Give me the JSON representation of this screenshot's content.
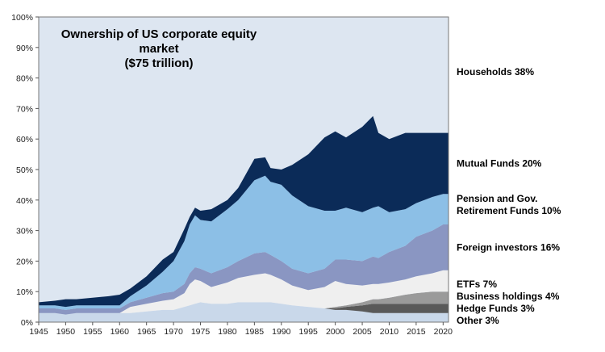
{
  "chart_data": {
    "type": "area",
    "stacked": true,
    "title": [
      "Ownership of US corporate equity",
      "market",
      "($75 trillion)"
    ],
    "xlim": [
      1945,
      2021
    ],
    "ylim": [
      0,
      100
    ],
    "x": [
      1945,
      1948,
      1950,
      1952,
      1955,
      1958,
      1960,
      1962,
      1965,
      1968,
      1970,
      1972,
      1973,
      1974,
      1975,
      1977,
      1980,
      1982,
      1985,
      1987,
      1988,
      1990,
      1992,
      1995,
      1998,
      2000,
      2002,
      2005,
      2007,
      2008,
      2010,
      2013,
      2015,
      2018,
      2020,
      2021
    ],
    "xticks": [
      "1945",
      "1950",
      "1955",
      "1960",
      "1965",
      "1970",
      "1975",
      "1980",
      "1985",
      "1990",
      "1995",
      "2000",
      "2005",
      "2010",
      "2015",
      "2020"
    ],
    "yticks": [
      "0%",
      "10%",
      "20%",
      "30%",
      "40%",
      "50%",
      "60%",
      "70%",
      "80%",
      "90%",
      "100%"
    ],
    "series": [
      {
        "name": "Other 3%",
        "color": "#c9d8ea",
        "values": [
          3,
          3,
          2.5,
          3,
          3,
          3,
          3,
          3,
          3.5,
          4,
          4,
          5,
          5.5,
          6,
          6.5,
          6,
          6,
          6.5,
          6.5,
          6.5,
          6.5,
          6,
          5.5,
          5,
          4.5,
          4,
          4,
          3.5,
          3,
          3,
          3,
          3,
          3,
          3,
          3,
          3
        ]
      },
      {
        "name": "Hedge Funds 3%",
        "color": "#595959",
        "values": [
          0,
          0,
          0,
          0,
          0,
          0,
          0,
          0,
          0,
          0,
          0,
          0,
          0,
          0,
          0,
          0,
          0,
          0,
          0,
          0,
          0,
          0,
          0,
          0,
          0,
          0.5,
          1,
          2,
          3,
          3,
          3,
          3,
          3,
          3,
          3,
          3
        ]
      },
      {
        "name": "Business holdings 4%",
        "color": "#9a9a9a",
        "values": [
          0,
          0,
          0,
          0,
          0,
          0,
          0,
          0,
          0,
          0,
          0,
          0,
          0,
          0,
          0,
          0,
          0,
          0,
          0,
          0,
          0,
          0,
          0,
          0,
          0,
          0.5,
          0.5,
          1,
          1.5,
          1.5,
          2,
          3,
          3.5,
          4,
          4,
          4
        ]
      },
      {
        "name": "ETFs 7%",
        "color": "#efefef",
        "values": [
          0,
          0,
          0,
          0,
          0,
          0,
          0,
          2,
          2.5,
          3,
          3.5,
          4.5,
          7,
          8,
          7,
          5.5,
          7,
          8,
          9,
          9.5,
          9,
          8,
          6.5,
          5.5,
          7,
          8.5,
          7,
          5.5,
          5,
          5,
          5,
          5,
          5.5,
          6,
          7,
          7
        ]
      },
      {
        "name": "Foreign investors 16%",
        "color": "#8a96c2",
        "values": [
          1.5,
          1.5,
          1.5,
          1.5,
          1.5,
          1.5,
          1.5,
          1.5,
          2,
          2.5,
          2.5,
          3,
          3.5,
          4,
          4,
          4.5,
          5,
          5.5,
          7,
          7,
          6.5,
          6,
          5.5,
          5.5,
          6,
          7,
          8,
          8,
          9,
          8.5,
          10,
          11,
          13,
          14,
          15,
          15
        ]
      },
      {
        "name": "Pension and Gov. Retirement Funds 10%",
        "color": "#8cbfe6",
        "values": [
          1,
          1,
          1,
          1,
          1,
          1,
          1,
          2,
          4,
          7,
          10,
          14,
          16,
          17,
          16,
          17,
          19,
          20,
          24,
          25,
          24,
          25,
          24,
          22,
          19,
          16,
          17,
          16,
          16,
          17,
          13,
          12,
          11,
          11,
          10,
          10
        ]
      },
      {
        "name": "Mutual Funds 20%",
        "color": "#0b2b58",
        "values": [
          1,
          1.5,
          2.5,
          2,
          2.5,
          3,
          3.5,
          2.5,
          3,
          4,
          3,
          4,
          2.5,
          2.5,
          3,
          4,
          3,
          4,
          7,
          6,
          4.5,
          5,
          10,
          17,
          24,
          26,
          23,
          28,
          30,
          24,
          24,
          25,
          23,
          21,
          20,
          20
        ]
      }
    ],
    "right_labels": [
      {
        "text": "Households 38%",
        "series": "Households 38%",
        "pct": 82
      },
      {
        "text": "Mutual Funds 20%",
        "series": "Mutual Funds 20%",
        "pct": 52
      },
      {
        "text": "Pension and Gov.",
        "series": "Pension and Gov. Retirement Funds 10%",
        "pct": 40.5
      },
      {
        "text": "Retirement Funds 10%",
        "series": "Pension and Gov. Retirement Funds 10%",
        "pct": 36.5
      },
      {
        "text": "Foreign investors 16%",
        "series": "Foreign investors 16%",
        "pct": 24.5
      },
      {
        "text": "ETFs 7%",
        "series": "ETFs 7%",
        "pct": 12.5
      },
      {
        "text": "Business holdings 4%",
        "series": "Business holdings 4%",
        "pct": 8.5
      },
      {
        "text": "Hedge Funds 3%",
        "series": "Hedge Funds 3%",
        "pct": 4.5
      },
      {
        "text": "Other 3%",
        "series": "Other 3%",
        "pct": 0.5
      }
    ],
    "grid": false,
    "background_color": "#dde6f1",
    "legend_placement": "right"
  }
}
